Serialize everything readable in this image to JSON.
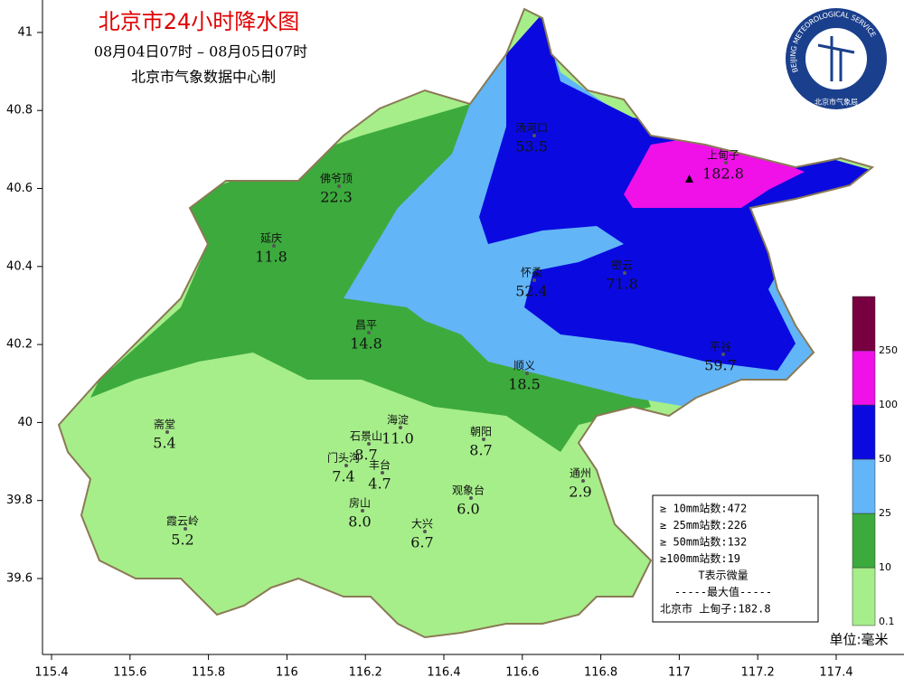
{
  "header": {
    "title": "北京市24小时降水图",
    "period": "08月04日07时 – 08月05日07时",
    "source": "北京市气象数据中心制"
  },
  "logo": {
    "english": "BEIJING METEOROLOGICAL SERVICE",
    "chinese": "北京市气象局"
  },
  "axes": {
    "xticks": [
      115.4,
      115.6,
      115.8,
      116,
      116.2,
      116.4,
      116.6,
      116.8,
      117,
      117.2,
      117.4
    ],
    "yticks": [
      39.6,
      39.8,
      40,
      40.2,
      40.4,
      40.6,
      40.8,
      41
    ]
  },
  "stations": [
    {
      "name": "汤河口",
      "value": "53.5"
    },
    {
      "name": "上甸子",
      "value": "182.8"
    },
    {
      "name": "佛爷顶",
      "value": "22.3"
    },
    {
      "name": "延庆",
      "value": "11.8"
    },
    {
      "name": "怀柔",
      "value": "52.4"
    },
    {
      "name": "密云",
      "value": "71.8"
    },
    {
      "name": "平谷",
      "value": "59.7"
    },
    {
      "name": "昌平",
      "value": "14.8"
    },
    {
      "name": "顺义",
      "value": "18.5"
    },
    {
      "name": "海淀",
      "value": "11.0"
    },
    {
      "name": "石景山",
      "value": "8.7"
    },
    {
      "name": "朝阳",
      "value": "8.7"
    },
    {
      "name": "门头沟",
      "value": "7.4"
    },
    {
      "name": "丰台",
      "value": "4.7"
    },
    {
      "name": "通州",
      "value": "2.9"
    },
    {
      "name": "观象台",
      "value": "6.0"
    },
    {
      "name": "房山",
      "value": "8.0"
    },
    {
      "name": "大兴",
      "value": "6.7"
    },
    {
      "name": "斋堂",
      "value": "5.4"
    },
    {
      "name": "霞云岭",
      "value": "5.2"
    }
  ],
  "legend": {
    "levels": [
      0.1,
      10,
      25,
      50,
      100,
      250
    ],
    "colors": [
      "#a6ee8a",
      "#3daa3d",
      "#62b5f6",
      "#0a0ae0",
      "#f010e8",
      "#780040"
    ]
  },
  "stats": [
    "≥ 10mm站数:472",
    "≥ 25mm站数:226",
    "≥ 50mm站数:132",
    "≥100mm站数:19",
    "T表示微量",
    "-----最大值-----",
    "北京市 上甸子:182.8"
  ],
  "unit": "单位:毫米"
}
